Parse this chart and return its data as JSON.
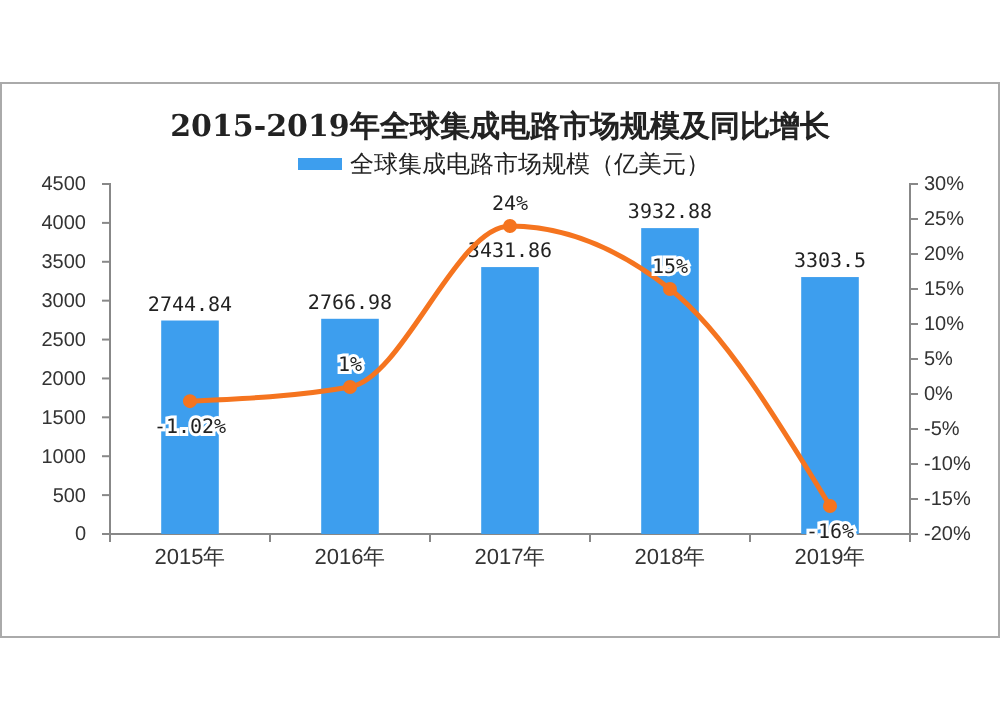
{
  "chart_data": {
    "type": "bar",
    "title": "2015-2019年全球集成电路市场规模及同比增长",
    "categories": [
      "2015年",
      "2016年",
      "2017年",
      "2018年",
      "2019年"
    ],
    "series": [
      {
        "name": "全球集成电路市场规模（亿美元）",
        "color": "#3d9eee",
        "values": [
          2744.84,
          2766.98,
          3431.86,
          3932.88,
          3303.5
        ],
        "value_labels": [
          "2744.84",
          "2766.98",
          "3431.86",
          "3932.88",
          "3303.5"
        ]
      },
      {
        "type": "line",
        "axis": "y2",
        "color": "#f5741f",
        "marker": "circle",
        "values": [
          -1.02,
          1,
          24,
          15,
          -16
        ],
        "value_labels": [
          "-1.02%",
          "1%",
          "24%",
          "15%",
          "-16%"
        ]
      }
    ],
    "ylim": [
      0,
      4500
    ],
    "yticks": [
      0,
      500,
      1000,
      1500,
      2000,
      2500,
      3000,
      3500,
      4000,
      4500
    ],
    "y2lim": [
      -20,
      30
    ],
    "y2ticks": [
      {
        "value": -20,
        "label": "-20%"
      },
      {
        "value": -15,
        "label": "-15%"
      },
      {
        "value": -10,
        "label": "-10%"
      },
      {
        "value": -5,
        "label": "-5%"
      },
      {
        "value": 0,
        "label": "0%"
      },
      {
        "value": 5,
        "label": "5%"
      },
      {
        "value": 10,
        "label": "10%"
      },
      {
        "value": 15,
        "label": "15%"
      },
      {
        "value": 20,
        "label": "20%"
      },
      {
        "value": 25,
        "label": "25%"
      },
      {
        "value": 30,
        "label": "30%"
      }
    ],
    "legend": "top",
    "grid": false
  }
}
